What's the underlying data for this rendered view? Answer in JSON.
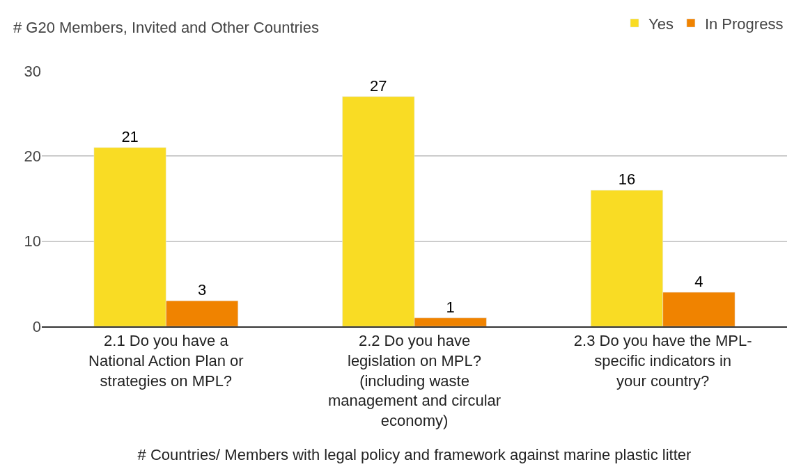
{
  "chart_data": {
    "type": "bar",
    "ylabel": "# G20 Members, Invited and Other Countries",
    "xlabel": "# Countries/ Members with legal policy and framework against marine plastic litter",
    "categories": [
      "2.1 Do you have a National Action Plan or strategies on MPL?",
      "2.2 Do you have legislation on MPL? (including waste management and circular economy)",
      "2.3 Do you have the MPL-specific indicators in your country?"
    ],
    "series": [
      {
        "name": "Yes",
        "color": "#f9dc24",
        "values": [
          21,
          27,
          16
        ]
      },
      {
        "name": "In Progress",
        "color": "#f08300",
        "values": [
          3,
          1,
          4
        ]
      }
    ],
    "ylim": [
      0,
      30
    ],
    "yticks": [
      0,
      10,
      20,
      30
    ],
    "grid": "y",
    "legend": "top right",
    "data_labels": true
  }
}
